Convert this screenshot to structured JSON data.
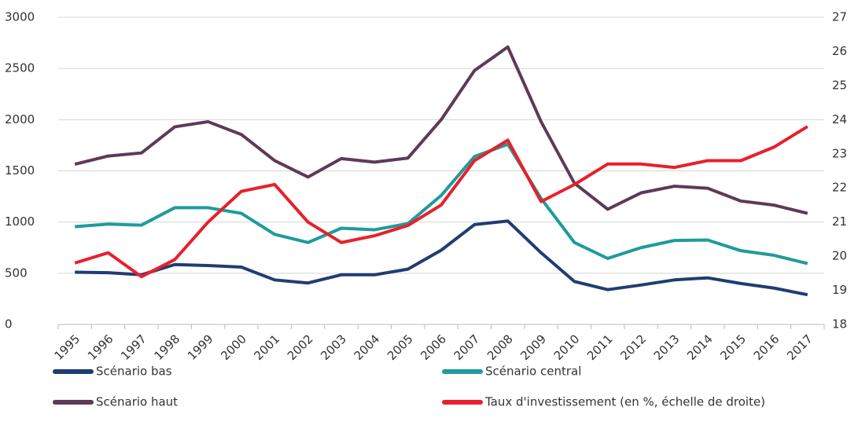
{
  "chart_data": {
    "type": "line",
    "categories": [
      "1995",
      "1996",
      "1997",
      "1998",
      "1999",
      "2000",
      "2001",
      "2002",
      "2003",
      "2004",
      "2005",
      "2006",
      "2007",
      "2008",
      "2009",
      "2010",
      "2011",
      "2012",
      "2013",
      "2014",
      "2015",
      "2016",
      "2017"
    ],
    "series": [
      {
        "name": "Scénario bas",
        "color": "#1f3d73",
        "values": [
          510,
          505,
          485,
          585,
          575,
          560,
          435,
          405,
          485,
          485,
          540,
          725,
          975,
          1010,
          700,
          420,
          340,
          385,
          435,
          455,
          400,
          355,
          290
        ]
      },
      {
        "name": "Scénario central",
        "color": "#1f9b9b",
        "values": [
          955,
          980,
          970,
          1140,
          1140,
          1085,
          880,
          800,
          940,
          925,
          985,
          1260,
          1640,
          1760,
          1230,
          800,
          645,
          750,
          820,
          825,
          720,
          675,
          595
        ]
      },
      {
        "name": "Scénario haut",
        "color": "#5e3a57",
        "values": [
          1565,
          1645,
          1675,
          1930,
          1980,
          1855,
          1600,
          1440,
          1620,
          1585,
          1625,
          2000,
          2480,
          2710,
          1980,
          1380,
          1125,
          1285,
          1350,
          1330,
          1205,
          1165,
          1085
        ]
      },
      {
        "name": "Taux d'investissement (en %, échelle de droite)",
        "color": "#e8202a",
        "axis": "y2",
        "values": [
          19.8,
          20.1,
          19.4,
          19.9,
          21.0,
          21.9,
          22.1,
          21.0,
          20.4,
          20.6,
          20.9,
          21.5,
          22.8,
          23.4,
          21.6,
          22.1,
          22.7,
          22.7,
          22.6,
          22.8,
          22.8,
          23.2,
          23.8
        ]
      }
    ],
    "ylim": [
      0,
      3000
    ],
    "yticks": [
      0,
      500,
      1000,
      1500,
      2000,
      2500,
      3000
    ],
    "y2lim": [
      18,
      27
    ],
    "y2ticks": [
      18,
      19,
      20,
      21,
      22,
      23,
      24,
      25,
      26,
      27
    ],
    "grid": true
  }
}
